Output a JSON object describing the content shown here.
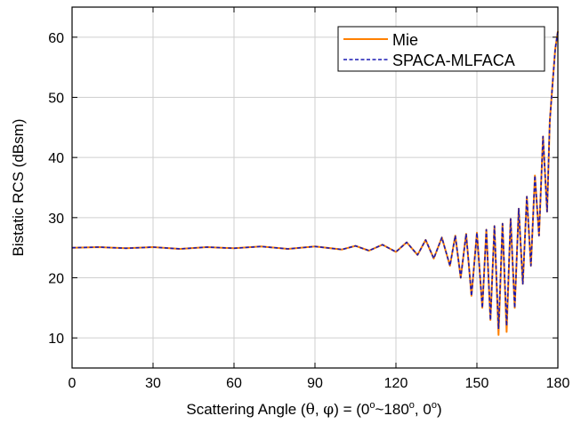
{
  "chart_data": {
    "type": "line",
    "title": "",
    "xlabel": "Scattering Angle (θ, φ) = (0°~180°, 0°)",
    "xlabel_parts": {
      "prefix": "Scattering Angle (",
      "theta": "θ",
      "comma1": ", ",
      "phi": "φ",
      "mid": ") = (0",
      "deg1": "o",
      "tilde": "~180",
      "deg2": "o",
      "comma2": ", 0",
      "deg3": "o",
      "suffix": ")"
    },
    "ylabel": "Bistatic RCS (dBsm)",
    "xlim": [
      0,
      180
    ],
    "ylim": [
      5,
      65
    ],
    "xticks": [
      0,
      30,
      60,
      90,
      120,
      150,
      180
    ],
    "yticks": [
      10,
      20,
      30,
      40,
      50,
      60
    ],
    "grid": true,
    "legend_position": "top-right",
    "series": [
      {
        "name": "Mie",
        "color": "#ff8000",
        "dash": "solid",
        "x": [
          0,
          10,
          20,
          30,
          40,
          50,
          60,
          70,
          80,
          90,
          100,
          105,
          110,
          115,
          120,
          124,
          128,
          131,
          134,
          137,
          140,
          142,
          144,
          146,
          148,
          150,
          152,
          153.5,
          155,
          156.5,
          158,
          159.5,
          161,
          162.5,
          164,
          165.5,
          167,
          168.5,
          170,
          171.5,
          173,
          174.5,
          176,
          177,
          178,
          179,
          180
        ],
        "y": [
          25,
          25.1,
          24.9,
          25.1,
          24.8,
          25.1,
          24.9,
          25.2,
          24.8,
          25.2,
          24.7,
          25.3,
          24.5,
          25.5,
          24.3,
          25.9,
          23.8,
          26.3,
          23.2,
          26.7,
          22,
          27,
          20,
          27.3,
          17,
          27.5,
          15,
          28,
          13,
          28.6,
          10.5,
          29,
          11,
          29.8,
          15,
          31.5,
          19,
          33.5,
          22,
          37,
          27,
          43.5,
          31,
          46,
          52,
          58,
          61
        ]
      },
      {
        "name": "SPACA-MLFACA",
        "color": "#1a1ab4",
        "dash": "dashed",
        "x": [
          0,
          10,
          20,
          30,
          40,
          50,
          60,
          70,
          80,
          90,
          100,
          105,
          110,
          115,
          120,
          124,
          128,
          131,
          134,
          137,
          140,
          142,
          144,
          146,
          148,
          150,
          152,
          153.5,
          155,
          156.5,
          158,
          159.5,
          161,
          162.5,
          164,
          165.5,
          167,
          168.5,
          170,
          171.5,
          173,
          174.5,
          176,
          177,
          178,
          179,
          180
        ],
        "y": [
          25,
          25.1,
          24.9,
          25.1,
          24.8,
          25.1,
          24.9,
          25.2,
          24.8,
          25.2,
          24.7,
          25.3,
          24.5,
          25.5,
          24.3,
          25.9,
          23.8,
          26.3,
          23.2,
          26.7,
          22,
          27,
          20,
          27.3,
          17,
          27.5,
          15,
          28,
          13,
          28.6,
          11.5,
          29,
          12,
          29.8,
          15,
          31.5,
          19,
          33.5,
          22,
          37,
          27,
          43.5,
          31,
          46,
          52,
          58,
          61
        ]
      }
    ]
  }
}
